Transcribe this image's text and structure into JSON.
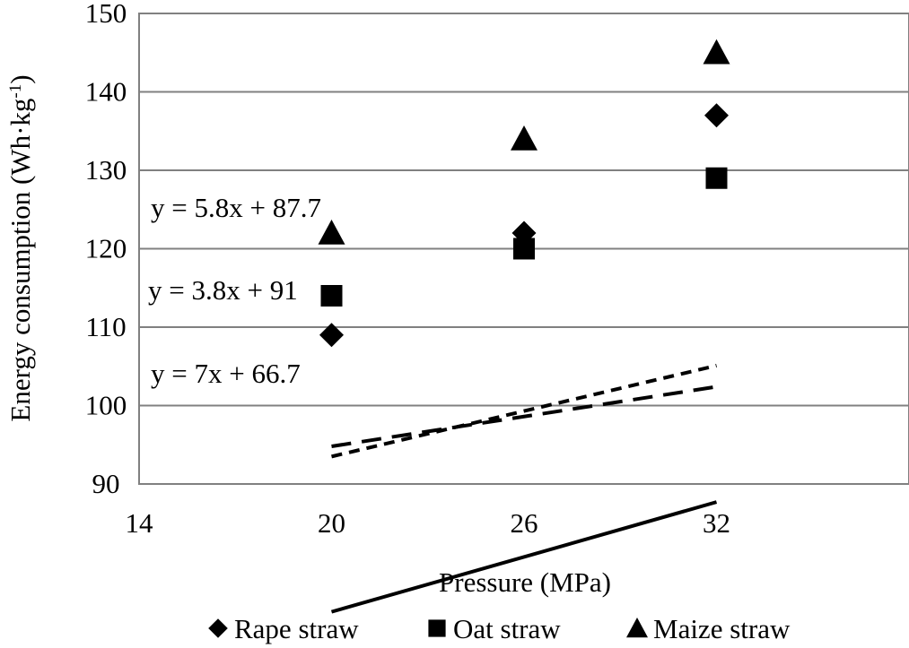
{
  "chart_data": {
    "type": "scatter",
    "title": "",
    "xlabel": "Pressure (MPa)",
    "ylabel_main": "Energy consumption (Wh·kg",
    "ylabel_sup": "-1",
    "ylabel_close": ")",
    "xlim": [
      14,
      38
    ],
    "ylim": [
      90,
      150
    ],
    "xticks": [
      14,
      20,
      26,
      32
    ],
    "yticks": [
      90,
      100,
      110,
      120,
      130,
      140,
      150
    ],
    "grid": true,
    "legend_position": "bottom",
    "series": [
      {
        "name": "Rape straw",
        "marker": "diamond",
        "line_style": "solid",
        "x": [
          20,
          26,
          32
        ],
        "y": [
          109,
          122,
          137
        ],
        "trendline": {
          "slope": 7,
          "intercept": 66.7,
          "label": "y = 7x + 66.7"
        }
      },
      {
        "name": "Oat straw",
        "marker": "square",
        "line_style": "long-dash",
        "x": [
          20,
          26,
          32
        ],
        "y": [
          114,
          120,
          129
        ],
        "trendline": {
          "slope": 3.8,
          "intercept": 91,
          "label": "y = 3.8x + 91"
        }
      },
      {
        "name": "Maize straw",
        "marker": "triangle",
        "line_style": "short-dash",
        "x": [
          20,
          26,
          32
        ],
        "y": [
          122,
          134,
          145
        ],
        "trendline": {
          "slope": 5.8,
          "intercept": 87.7,
          "label": "y = 5.8x + 87.7"
        }
      }
    ]
  }
}
